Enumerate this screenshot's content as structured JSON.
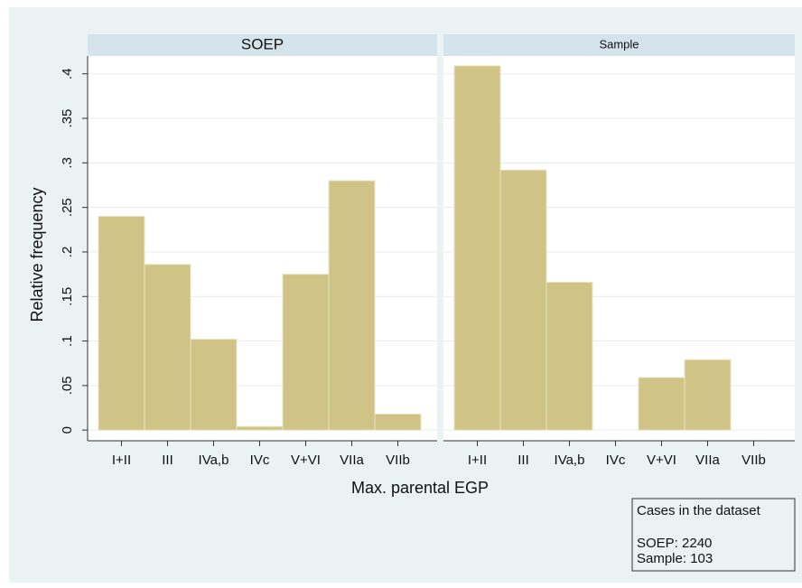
{
  "chart_data": {
    "type": "bar",
    "y_label": "Relative frequency",
    "x_label": "Max. parental EGP",
    "categories": [
      "I+II",
      "III",
      "IVa,b",
      "IVc",
      "V+VI",
      "VIIa",
      "VIIb"
    ],
    "panels": [
      {
        "title": "SOEP",
        "values": [
          0.24,
          0.186,
          0.102,
          0.004,
          0.175,
          0.28,
          0.018
        ]
      },
      {
        "title": "Sample",
        "values": [
          0.409,
          0.292,
          0.166,
          0,
          0.059,
          0.079,
          0
        ]
      }
    ],
    "color": "#cfc385",
    "ylim": [
      -0.012,
      0.42
    ],
    "yticks": [
      0,
      {
        "value": 0.05,
        "label": ".05"
      },
      {
        "value": 0.1,
        "label": ".1"
      },
      {
        "value": 0.15,
        "label": ".15"
      },
      {
        "value": 0.2,
        "label": ".2"
      },
      {
        "value": 0.25,
        "label": ".25"
      },
      {
        "value": 0.3,
        "label": ".3"
      },
      {
        "value": 0.35,
        "label": ".35"
      },
      {
        "value": 0.4,
        "label": ".4"
      }
    ],
    "grid": true,
    "note": {
      "title": "Cases in the dataset",
      "lines": [
        "SOEP: 2240",
        "Sample:  103"
      ]
    }
  }
}
